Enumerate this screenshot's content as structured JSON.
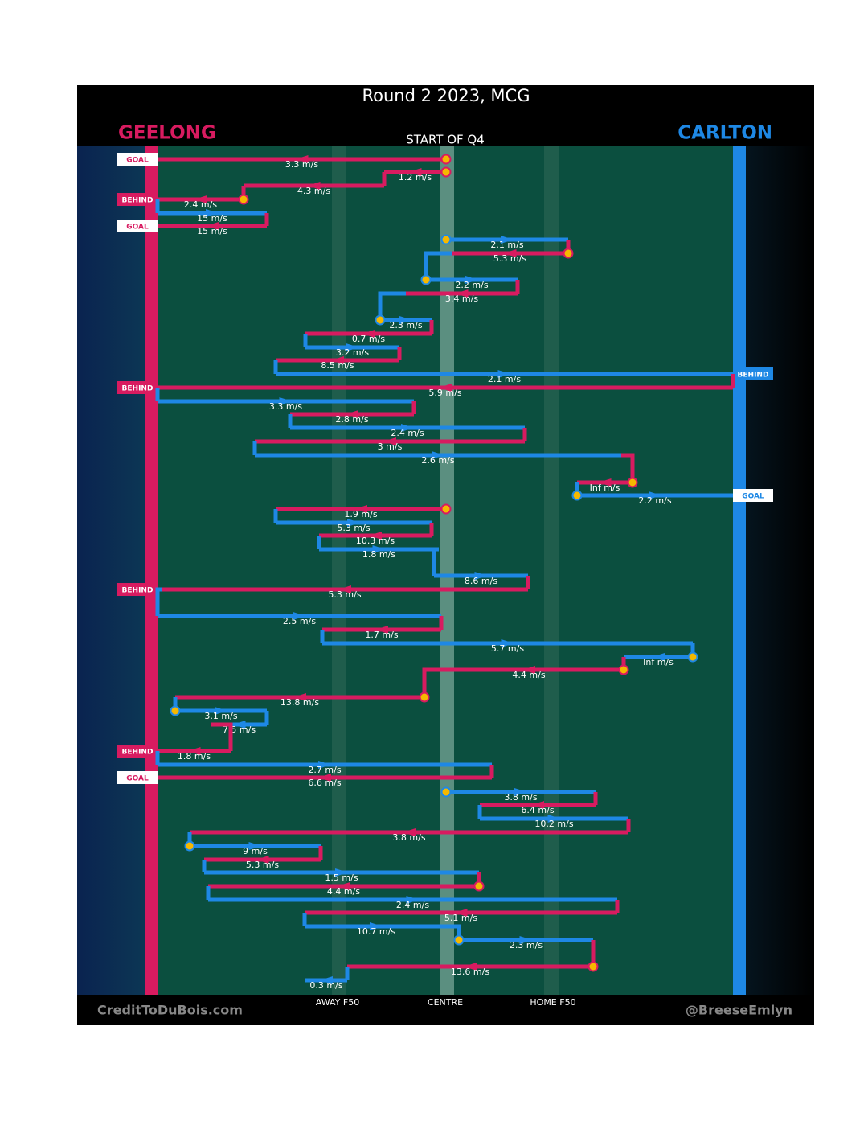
{
  "header": {
    "title": "Round 2 2023, MCG",
    "home": "GEELONG",
    "away": "CARLTON",
    "period": "START OF Q4"
  },
  "field_labels": [
    "AWAY F50",
    "CENTRE",
    "HOME F50"
  ],
  "footer": {
    "left": "CreditToDuBois.com",
    "right": "@BreeseEmlyn"
  },
  "colors": {
    "home": "#d81b60",
    "away": "#1e88e5"
  },
  "movements": [
    {
      "label": "3.3 m/s",
      "team": "home",
      "outcome": "GOAL"
    },
    {
      "label": "1.2 m/s",
      "team": "home"
    },
    {
      "label": "4.3 m/s",
      "team": "home"
    },
    {
      "label": "2.4 m/s",
      "team": "home",
      "outcome": "BEHIND"
    },
    {
      "label": "15 m/s",
      "team": "away"
    },
    {
      "label": "15 m/s",
      "team": "home",
      "outcome": "GOAL"
    },
    {
      "label": "2.1 m/s",
      "team": "away"
    },
    {
      "label": "5.3 m/s",
      "team": "home"
    },
    {
      "label": "2.2 m/s",
      "team": "away"
    },
    {
      "label": "3.4 m/s",
      "team": "home"
    },
    {
      "label": "2.3 m/s",
      "team": "away"
    },
    {
      "label": "0.7 m/s",
      "team": "home"
    },
    {
      "label": "3.2 m/s",
      "team": "away"
    },
    {
      "label": "8.5 m/s",
      "team": "home"
    },
    {
      "label": "2.1 m/s",
      "team": "away",
      "outcome": "BEHIND"
    },
    {
      "label": "5.9 m/s",
      "team": "home",
      "outcome": "BEHIND"
    },
    {
      "label": "3.3 m/s",
      "team": "away"
    },
    {
      "label": "2.8 m/s",
      "team": "home"
    },
    {
      "label": "2.4 m/s",
      "team": "away"
    },
    {
      "label": "3 m/s",
      "team": "home"
    },
    {
      "label": "2.6 m/s",
      "team": "away"
    },
    {
      "label": "Inf m/s",
      "team": "home"
    },
    {
      "label": "2.2 m/s",
      "team": "away",
      "outcome": "GOAL"
    },
    {
      "label": "1.9 m/s",
      "team": "home"
    },
    {
      "label": "5.3 m/s",
      "team": "away"
    },
    {
      "label": "10.3 m/s",
      "team": "home"
    },
    {
      "label": "1.8 m/s",
      "team": "away"
    },
    {
      "label": "8.6 m/s",
      "team": "away"
    },
    {
      "label": "5.3 m/s",
      "team": "home",
      "outcome": "BEHIND"
    },
    {
      "label": "2.5 m/s",
      "team": "away"
    },
    {
      "label": "1.7 m/s",
      "team": "home"
    },
    {
      "label": "5.7 m/s",
      "team": "away"
    },
    {
      "label": "Inf m/s",
      "team": "away"
    },
    {
      "label": "4.4 m/s",
      "team": "home"
    },
    {
      "label": "13.8 m/s",
      "team": "home"
    },
    {
      "label": "3.1 m/s",
      "team": "away"
    },
    {
      "label": "7.5 m/s",
      "team": "away"
    },
    {
      "label": "1.8 m/s",
      "team": "home",
      "outcome": "BEHIND"
    },
    {
      "label": "2.7 m/s",
      "team": "away"
    },
    {
      "label": "6.6 m/s",
      "team": "home",
      "outcome": "GOAL"
    },
    {
      "label": "3.8 m/s",
      "team": "away"
    },
    {
      "label": "6.4 m/s",
      "team": "home"
    },
    {
      "label": "10.2 m/s",
      "team": "away"
    },
    {
      "label": "3.8 m/s",
      "team": "home"
    },
    {
      "label": "9 m/s",
      "team": "away"
    },
    {
      "label": "5.3 m/s",
      "team": "home"
    },
    {
      "label": "1.5 m/s",
      "team": "away"
    },
    {
      "label": "4.4 m/s",
      "team": "home"
    },
    {
      "label": "2.4 m/s",
      "team": "away"
    },
    {
      "label": "5.1 m/s",
      "team": "home"
    },
    {
      "label": "10.7 m/s",
      "team": "away"
    },
    {
      "label": "2.3 m/s",
      "team": "away"
    },
    {
      "label": "13.6 m/s",
      "team": "home"
    },
    {
      "label": "0.3 m/s",
      "team": "away"
    }
  ]
}
